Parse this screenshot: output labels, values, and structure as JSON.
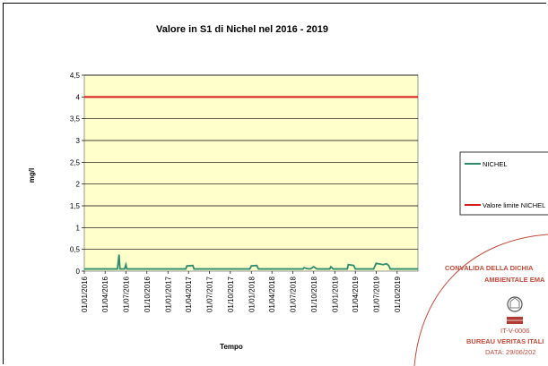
{
  "chart_data": {
    "type": "line",
    "title": "Valore in S1 di Nichel nel 2016 - 2019",
    "xlabel": "Tempo",
    "ylabel": "mg/l",
    "ylim": [
      0,
      4.5
    ],
    "yticks": [
      "0",
      "0,5",
      "1",
      "1,5",
      "2",
      "2,5",
      "3",
      "3,5",
      "4",
      "4,5"
    ],
    "xticks": [
      "01/01/2016",
      "01/04/2016",
      "01/07/2016",
      "01/10/2016",
      "01/01/2017",
      "01/04/2017",
      "01/07/2017",
      "01/10/2017",
      "01/01/2018",
      "01/04/2018",
      "01/07/2018",
      "01/10/2018",
      "01/01/2019",
      "01/04/2019",
      "01/07/2019",
      "01/10/2019"
    ],
    "plot_background": "#ffffcc",
    "grid": "horizontal",
    "legend_position": "right",
    "series": [
      {
        "name": "NICHEL",
        "color": "#2e8b6e",
        "points": [
          [
            "2016-01-01",
            0.05
          ],
          [
            "2016-05-25",
            0.05
          ],
          [
            "2016-06-01",
            0.38
          ],
          [
            "2016-06-05",
            0.05
          ],
          [
            "2016-06-25",
            0.05
          ],
          [
            "2016-07-01",
            0.15
          ],
          [
            "2016-07-05",
            0.05
          ],
          [
            "2017-03-20",
            0.05
          ],
          [
            "2017-03-25",
            0.12
          ],
          [
            "2017-04-20",
            0.13
          ],
          [
            "2017-04-25",
            0.05
          ],
          [
            "2017-12-25",
            0.05
          ],
          [
            "2018-01-01",
            0.12
          ],
          [
            "2018-01-25",
            0.13
          ],
          [
            "2018-02-01",
            0.05
          ],
          [
            "2018-08-15",
            0.05
          ],
          [
            "2018-08-20",
            0.08
          ],
          [
            "2018-09-01",
            0.06
          ],
          [
            "2018-09-15",
            0.05
          ],
          [
            "2018-10-01",
            0.1
          ],
          [
            "2018-10-15",
            0.05
          ],
          [
            "2018-12-10",
            0.05
          ],
          [
            "2018-12-15",
            0.1
          ],
          [
            "2018-12-25",
            0.05
          ],
          [
            "2019-02-25",
            0.05
          ],
          [
            "2019-03-01",
            0.15
          ],
          [
            "2019-03-25",
            0.13
          ],
          [
            "2019-04-01",
            0.05
          ],
          [
            "2019-06-20",
            0.05
          ],
          [
            "2019-07-01",
            0.18
          ],
          [
            "2019-08-01",
            0.15
          ],
          [
            "2019-08-15",
            0.17
          ],
          [
            "2019-08-25",
            0.13
          ],
          [
            "2019-09-01",
            0.05
          ],
          [
            "2019-12-31",
            0.05
          ]
        ]
      },
      {
        "name": "Valore limite NICHEL",
        "color": "#d41a1a",
        "points": [
          [
            "2016-01-01",
            4
          ],
          [
            "2019-12-31",
            4
          ]
        ]
      }
    ]
  },
  "stamp": {
    "line1": "CONVALIDA DELLA DICHIA",
    "line2": "AMBIENTALE EMA",
    "code": "IT-V-0006",
    "org": "BUREAU VERITAS ITALI",
    "date": "DATA: 29/06/202",
    "color": "#c04a3a"
  }
}
